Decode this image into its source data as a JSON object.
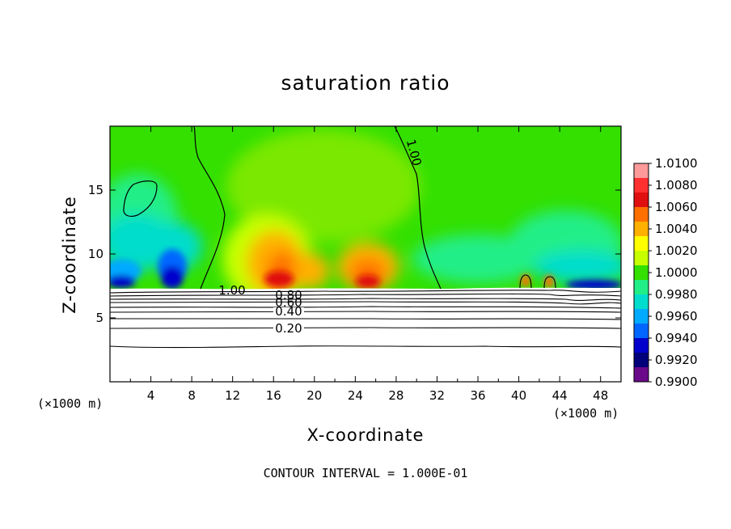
{
  "chart_data": {
    "type": "heatmap",
    "title": "saturation ratio",
    "xlabel": "X-coordinate",
    "ylabel": "Z-coordinate",
    "x_unit": "(×1000 m)",
    "note": "CONTOUR INTERVAL = 1.000E-01",
    "xlim": [
      0,
      50
    ],
    "ylim": [
      0,
      20
    ],
    "x_ticks": [
      "4",
      "8",
      "12",
      "16",
      "20",
      "24",
      "28",
      "32",
      "36",
      "40",
      "44",
      "48"
    ],
    "y_ticks": [
      "5",
      "10",
      "15"
    ],
    "colorbar": {
      "labels": [
        "1.0100",
        "1.0080",
        "1.0060",
        "1.0040",
        "1.0020",
        "1.0000",
        "0.9980",
        "0.9960",
        "0.9940",
        "0.9920",
        "0.9900"
      ],
      "colors": [
        "#ff9a9a",
        "#ff3030",
        "#e01010",
        "#ff7000",
        "#ffb000",
        "#ffff00",
        "#c8ff00",
        "#33e000",
        "#22ee88",
        "#00ddcc",
        "#00aaff",
        "#0066ff",
        "#0000cc",
        "#00007a",
        "#6a0a8a"
      ]
    },
    "contour_labels": [
      "1.00",
      "1.00",
      "0.80",
      "0.60",
      "0.40",
      "0.20"
    ],
    "contour_levels": [
      0.2,
      0.4,
      0.6,
      0.8,
      1.0
    ]
  }
}
